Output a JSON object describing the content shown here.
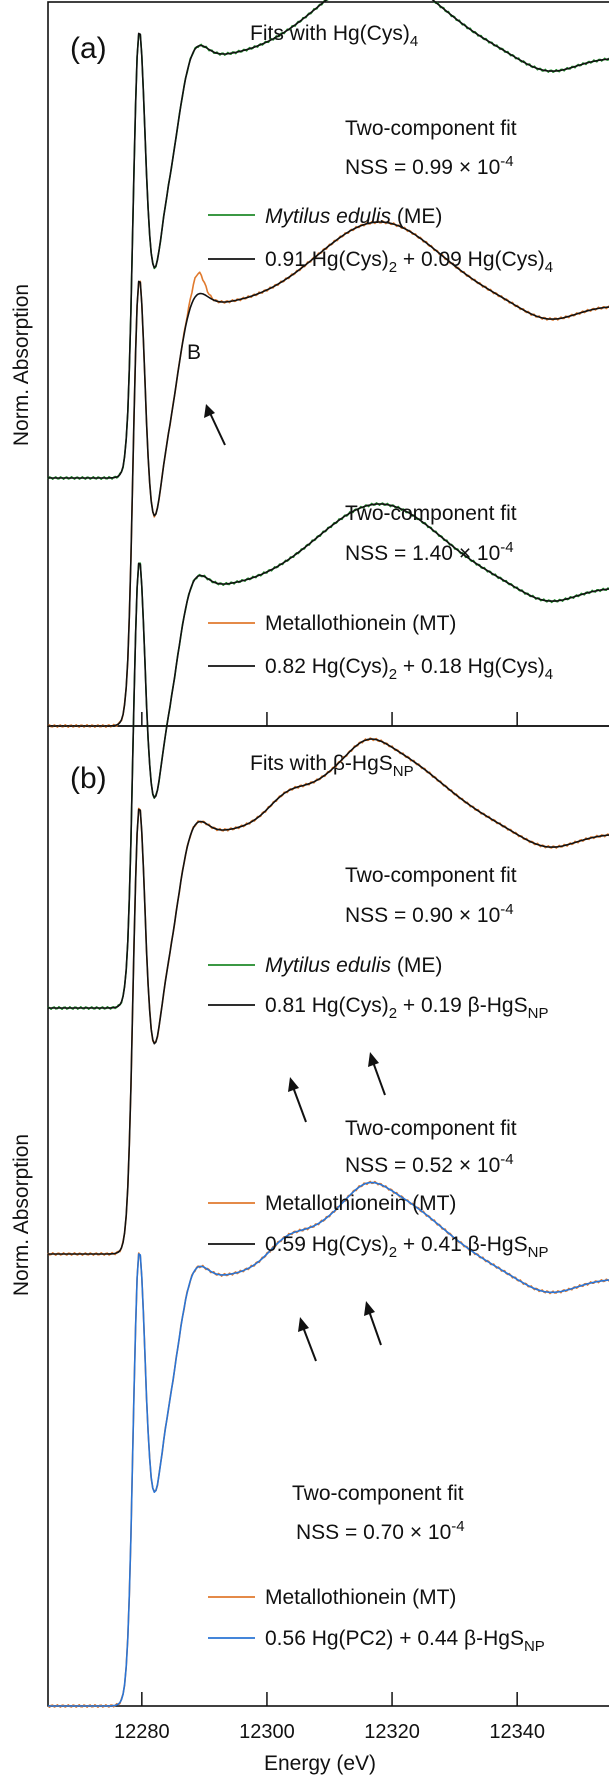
{
  "colors": {
    "green": "#1f8a2a",
    "black": "#111111",
    "orange": "#e07a2e",
    "blue": "#2a74d4"
  },
  "chart_data": {
    "type": "line",
    "xlabel": "Energy (eV)",
    "ylabel": "Norm. Absorption",
    "xlim": [
      12265,
      12355
    ],
    "x_ticks": [
      12280,
      12300,
      12320,
      12340
    ],
    "x_tick_labels": [
      "12280",
      "12300",
      "12320",
      "12340"
    ],
    "panels": [
      {
        "label": "(a)",
        "title": "Fits with Hg(Cys)4",
        "title_main": "Fits with Hg(Cys)",
        "title_sub": "4",
        "spectra": [
          {
            "fit_text": "Two-component fit",
            "nss_text": "NSS = 0.99 × 10",
            "nss_exp": "-4",
            "lines": [
              {
                "name": "Mytilus edulis (ME)",
                "name_italic": "Mytilus edulis",
                "name_rest": " (ME)",
                "color": "green",
                "features": "smooth"
              },
              {
                "name": "0.91 Hg(Cys)2 + 0.09 Hg(Cys)4",
                "parts": [
                  "0.91 Hg(Cys)",
                  "2",
                  " + 0.09 Hg(Cys)",
                  "4"
                ],
                "color": "black",
                "features": "smooth"
              }
            ]
          },
          {
            "fit_text": "Two-component fit",
            "nss_text": "NSS = 1.40 × 10",
            "nss_exp": "-4",
            "peak_label": "B",
            "lines": [
              {
                "name": "Metallothionein (MT)",
                "color": "orange",
                "features": "peakB"
              },
              {
                "name": "0.82 Hg(Cys)2 + 0.18 Hg(Cys)4",
                "parts": [
                  "0.82 Hg(Cys)",
                  "2",
                  " + 0.18 Hg(Cys)",
                  "4"
                ],
                "color": "black",
                "features": "smooth"
              }
            ]
          }
        ]
      },
      {
        "label": "(b)",
        "title": "Fits with β-HgSNP",
        "title_main": "Fits with β-HgS",
        "title_sub": "NP",
        "spectra": [
          {
            "fit_text": "Two-component fit",
            "nss_text": "NSS = 0.90 × 10",
            "nss_exp": "-4",
            "lines": [
              {
                "name": "Mytilus edulis (ME)",
                "name_italic": "Mytilus edulis",
                "name_rest": " (ME)",
                "color": "green",
                "features": "smooth"
              },
              {
                "name": "0.81 Hg(Cys)2 + 0.19 β-HgSNP",
                "parts": [
                  "0.81 Hg(Cys)",
                  "2",
                  " + 0.19 β-HgS",
                  "NP"
                ],
                "color": "black",
                "features": "smooth"
              }
            ]
          },
          {
            "fit_text": "Two-component fit",
            "nss_text": "NSS = 0.52 × 10",
            "nss_exp": "-4",
            "lines": [
              {
                "name": "Metallothionein (MT)",
                "color": "orange",
                "features": "np"
              },
              {
                "name": "0.59 Hg(Cys)2 + 0.41 β-HgSNP",
                "parts": [
                  "0.59 Hg(Cys)",
                  "2",
                  " + 0.41 β-HgS",
                  "NP"
                ],
                "color": "black",
                "features": "np"
              }
            ]
          },
          {
            "fit_text": "Two-component fit",
            "nss_text": "NSS = 0.70 × 10",
            "nss_exp": "-4",
            "lines": [
              {
                "name": "Metallothionein (MT)",
                "color": "orange",
                "features": "np"
              },
              {
                "name": "0.56 Hg(PC2) + 0.44 β-HgSNP",
                "parts": [
                  "0.56 Hg(PC2) + 0.44 β-HgS",
                  "NP"
                ],
                "color": "blue",
                "features": "np"
              }
            ]
          }
        ]
      }
    ]
  }
}
